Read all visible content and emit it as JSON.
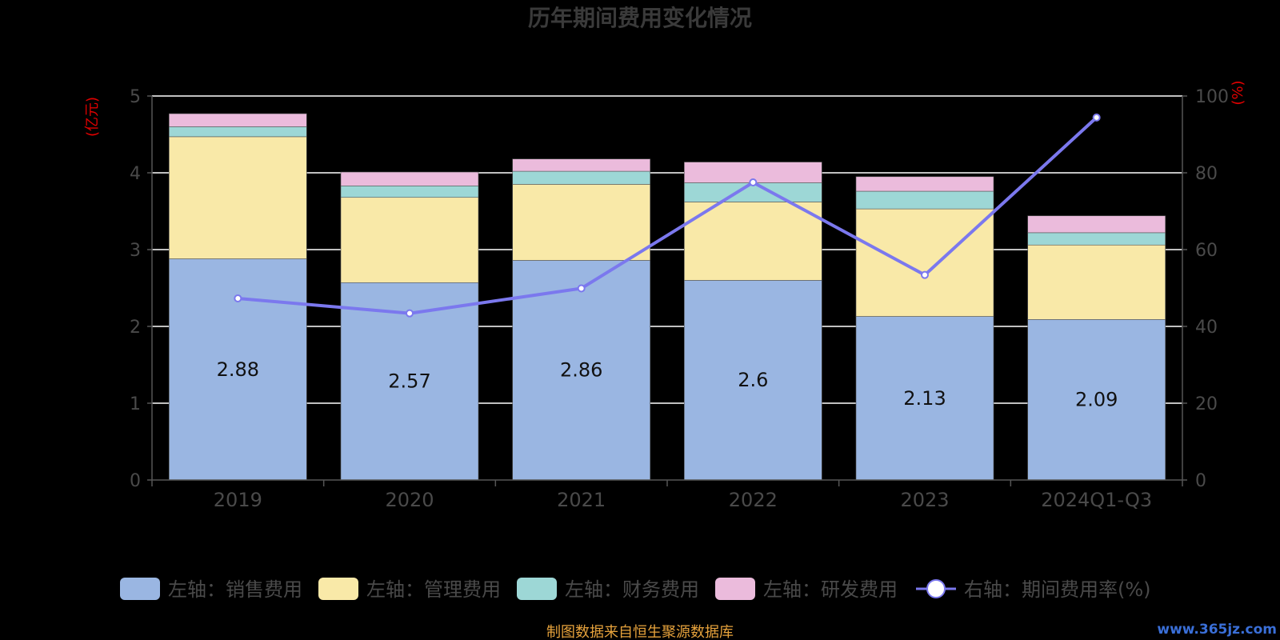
{
  "chart_data": {
    "type": "bar",
    "title": "历年期间费用变化情况",
    "categories": [
      "2019",
      "2020",
      "2021",
      "2022",
      "2023",
      "2024Q1-Q3"
    ],
    "left_axis": {
      "label": "(亿元)",
      "ylim": [
        0,
        5
      ],
      "ticks": [
        "0",
        "1",
        "2",
        "3",
        "4",
        "5"
      ]
    },
    "right_axis": {
      "label": "(%)",
      "ylim": [
        0,
        100
      ],
      "ticks": [
        "0",
        "20",
        "40",
        "60",
        "80",
        "100"
      ]
    },
    "grid": true,
    "legend_position": "bottom",
    "series": [
      {
        "name": "左轴：销售费用",
        "type": "bar",
        "axis": "left",
        "color": "#9ab6e2",
        "values": [
          2.88,
          2.57,
          2.86,
          2.6,
          2.13,
          2.09
        ],
        "labels": [
          "2.88",
          "2.57",
          "2.86",
          "2.6",
          "2.13",
          "2.09"
        ]
      },
      {
        "name": "左轴：管理费用",
        "type": "bar",
        "axis": "left",
        "color": "#f9e9a8",
        "values": [
          1.59,
          1.11,
          0.99,
          1.02,
          1.4,
          0.97
        ]
      },
      {
        "name": "左轴：财务费用",
        "type": "bar",
        "axis": "left",
        "color": "#9dd7d6",
        "values": [
          0.13,
          0.15,
          0.17,
          0.25,
          0.23,
          0.16
        ]
      },
      {
        "name": "左轴：研发费用",
        "type": "bar",
        "axis": "left",
        "color": "#ebbbdc",
        "values": [
          0.17,
          0.18,
          0.16,
          0.27,
          0.19,
          0.22
        ]
      },
      {
        "name": "右轴：期间费用率(%)",
        "type": "line",
        "axis": "right",
        "color": "#7b78ee",
        "values": [
          47.3,
          43.4,
          49.9,
          77.5,
          53.4,
          94.4
        ]
      }
    ],
    "source_note": "制图数据来自恒生聚源数据库",
    "watermark": "www.365jz.com"
  }
}
